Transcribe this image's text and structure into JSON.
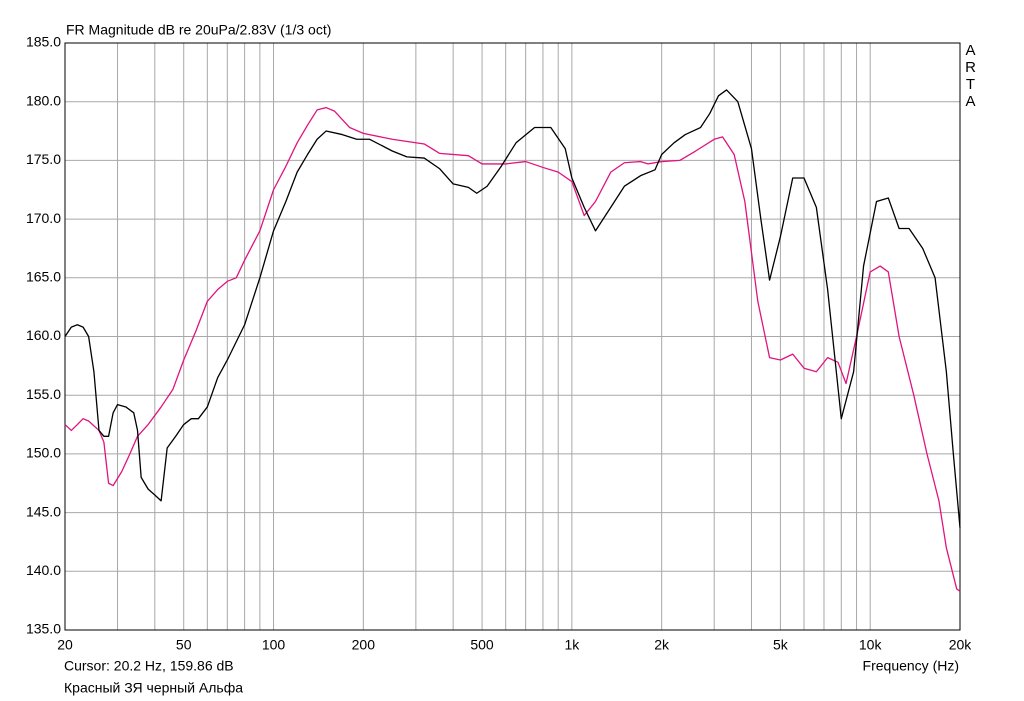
{
  "chart_data": {
    "type": "line",
    "title": "FR Magnitude dB re 20uPa/2.83V (1/3 oct)",
    "brand": "ARTA",
    "cursor": "Cursor: 20.2 Hz, 159.86 dB",
    "caption": "Красный ЗЯ черный Альфа",
    "x_label": "Frequency (Hz)",
    "x_log": true,
    "grid": true,
    "xlim": [
      20,
      20000
    ],
    "ylim": [
      135,
      185
    ],
    "xticks": [
      20,
      50,
      100,
      200,
      500,
      {
        "value": 1000,
        "label": "1k"
      },
      {
        "value": 2000,
        "label": "2k"
      },
      {
        "value": 5000,
        "label": "5k"
      },
      {
        "value": 10000,
        "label": "10k"
      },
      {
        "value": 20000,
        "label": "20k"
      }
    ],
    "x_minor_ticks": [
      30,
      40,
      60,
      70,
      80,
      90,
      300,
      400,
      600,
      700,
      800,
      900,
      3000,
      4000,
      6000,
      7000,
      8000,
      9000
    ],
    "yticks": [
      {
        "value": 135,
        "label": "135.0"
      },
      {
        "value": 140,
        "label": "140.0"
      },
      {
        "value": 145,
        "label": "145.0"
      },
      {
        "value": 150,
        "label": "150.0"
      },
      {
        "value": 155,
        "label": "155.0"
      },
      {
        "value": 160,
        "label": "160.0"
      },
      {
        "value": 165,
        "label": "165.0"
      },
      {
        "value": 170,
        "label": "170.0"
      },
      {
        "value": 175,
        "label": "175.0"
      },
      {
        "value": 180,
        "label": "180.0"
      },
      {
        "value": 185,
        "label": "185.0"
      }
    ],
    "series": [
      {
        "color": "#e0137f",
        "x": [
          20,
          21,
          22,
          23,
          24,
          26,
          27,
          28,
          29,
          31,
          33,
          35,
          38,
          42,
          46,
          50,
          55,
          60,
          65,
          70,
          75,
          80,
          90,
          100,
          110,
          120,
          130,
          140,
          150,
          160,
          180,
          200,
          250,
          320,
          360,
          450,
          500,
          600,
          700,
          800,
          900,
          1000,
          1100,
          1200,
          1350,
          1500,
          1700,
          1800,
          2000,
          2300,
          2600,
          3000,
          3200,
          3500,
          3800,
          4200,
          4600,
          5000,
          5500,
          6000,
          6600,
          7200,
          7800,
          8300,
          9000,
          10000,
          10800,
          11500,
          12500,
          14000,
          15500,
          17000,
          18000,
          19500,
          20000
        ],
        "values": [
          152.5,
          152,
          152.5,
          153,
          152.8,
          152,
          151,
          147.5,
          147.3,
          148.5,
          150,
          151.5,
          152.5,
          154,
          155.5,
          158,
          160.5,
          163,
          164,
          164.7,
          165,
          166.5,
          169,
          172.5,
          174.5,
          176.5,
          178,
          179.3,
          179.5,
          179.2,
          177.8,
          177.3,
          176.8,
          176.4,
          175.6,
          175.4,
          174.7,
          174.7,
          174.9,
          174.4,
          174,
          173.2,
          170.3,
          171.5,
          174,
          174.8,
          174.9,
          174.7,
          174.9,
          175,
          175.8,
          176.8,
          177,
          175.5,
          171.5,
          163,
          158.2,
          158,
          158.5,
          157.3,
          157,
          158.2,
          157.8,
          156,
          160,
          165.5,
          166,
          165.5,
          160,
          155,
          150,
          146,
          142,
          138.5,
          138.3
        ]
      },
      {
        "color": "#000000",
        "x": [
          20,
          21,
          22,
          23,
          24,
          25,
          26,
          27,
          28,
          29,
          30,
          32,
          34,
          35,
          36,
          38,
          40,
          42,
          44,
          47,
          50,
          53,
          56,
          60,
          65,
          70,
          80,
          90,
          100,
          110,
          120,
          130,
          140,
          150,
          170,
          190,
          210,
          250,
          280,
          320,
          360,
          400,
          450,
          480,
          520,
          580,
          650,
          750,
          850,
          950,
          1000,
          1100,
          1200,
          1350,
          1500,
          1700,
          1900,
          2000,
          2200,
          2400,
          2700,
          2900,
          3100,
          3300,
          3600,
          4000,
          4300,
          4600,
          5000,
          5500,
          6000,
          6600,
          7200,
          8000,
          8800,
          9500,
          10500,
          11500,
          12500,
          13500,
          15000,
          16500,
          18000,
          19000,
          20000
        ],
        "values": [
          160,
          160.8,
          161,
          160.8,
          160,
          157,
          152,
          151.5,
          151.5,
          153.5,
          154.2,
          154,
          153.5,
          152,
          148,
          147,
          146.5,
          146,
          150.5,
          151.5,
          152.5,
          153,
          153,
          154,
          156.5,
          158,
          161,
          165,
          169,
          171.5,
          174,
          175.5,
          176.8,
          177.5,
          177.2,
          176.8,
          176.8,
          175.8,
          175.3,
          175.2,
          174.3,
          173,
          172.7,
          172.2,
          172.8,
          174.5,
          176.5,
          177.8,
          177.8,
          176,
          173.5,
          171,
          169,
          171,
          172.8,
          173.7,
          174.2,
          175.5,
          176.5,
          177.2,
          177.8,
          179,
          180.5,
          181,
          180,
          176,
          170,
          164.8,
          168.5,
          173.5,
          173.5,
          171,
          164,
          153,
          157,
          166,
          171.5,
          171.8,
          169.2,
          169.2,
          167.5,
          165,
          157,
          150,
          143.7
        ]
      }
    ]
  }
}
